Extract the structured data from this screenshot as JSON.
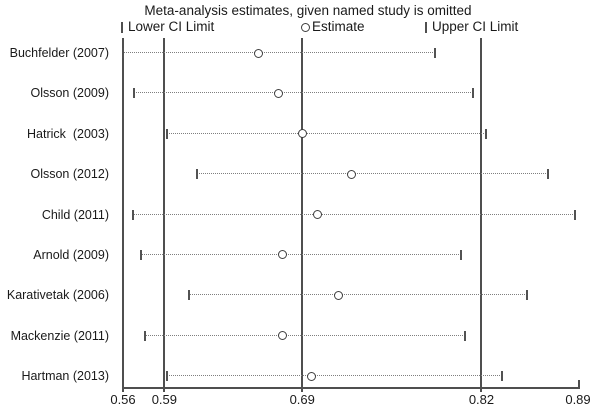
{
  "figure": {
    "title": "Meta-analysis estimates, given named study is omitted",
    "legend": {
      "lower_label": "Lower CI Limit",
      "estimate_label": "Estimate",
      "upper_label": "Upper CI Limit"
    }
  },
  "chart_data": {
    "type": "forest",
    "subtype": "leave-one-out sensitivity analysis",
    "title": "Meta-analysis estimates, given named study is omitted",
    "legend": [
      "Lower CI Limit",
      "Estimate",
      "Upper CI Limit"
    ],
    "legend_position": "top",
    "grid": "off",
    "x_axis": {
      "range": [
        0.56,
        0.89
      ],
      "ticks": [
        "0.56",
        "0.59",
        "0.69",
        "0.82",
        "0.89"
      ],
      "tick_values": [
        0.56,
        0.59,
        0.69,
        0.82,
        0.89
      ],
      "reference_line_values": [
        0.56,
        0.59,
        0.69,
        0.82
      ]
    },
    "overall": {
      "lower_ci": 0.59,
      "estimate": 0.69,
      "upper_ci": 0.82
    },
    "studies": [
      {
        "label": "Buchfelder (2007)",
        "lower_ci": 0.56,
        "estimate": 0.658,
        "upper_ci": 0.786
      },
      {
        "label": "Olsson (2009)",
        "lower_ci": 0.568,
        "estimate": 0.673,
        "upper_ci": 0.814
      },
      {
        "label": "Hatrick  (2003)",
        "lower_ci": 0.592,
        "estimate": 0.69,
        "upper_ci": 0.823
      },
      {
        "label": "Olsson (2012)",
        "lower_ci": 0.614,
        "estimate": 0.726,
        "upper_ci": 0.868
      },
      {
        "label": "Child (2011)",
        "lower_ci": 0.567,
        "estimate": 0.701,
        "upper_ci": 0.888
      },
      {
        "label": "Arnold (2009)",
        "lower_ci": 0.573,
        "estimate": 0.676,
        "upper_ci": 0.805
      },
      {
        "label": "Karativetak (2006)",
        "lower_ci": 0.608,
        "estimate": 0.716,
        "upper_ci": 0.853
      },
      {
        "label": "Mackenzie (2011)",
        "lower_ci": 0.576,
        "estimate": 0.676,
        "upper_ci": 0.808
      },
      {
        "label": "Hartman (2013)",
        "lower_ci": 0.592,
        "estimate": 0.697,
        "upper_ci": 0.835
      }
    ],
    "colors": {
      "line": "#4f4f4f",
      "ci_dotted": "#7f7f7f",
      "marker_ring": "#3e3e3e",
      "marker_fill": "#ffffff",
      "text": "#1a1a1a",
      "background": "#ffffff"
    }
  }
}
